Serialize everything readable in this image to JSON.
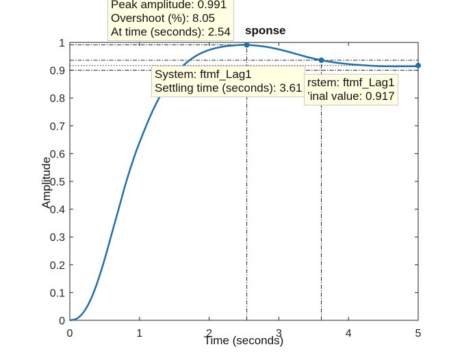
{
  "chart_data": {
    "type": "line",
    "title": "sponse",
    "xlabel": "Time (seconds)",
    "ylabel": "Amplitude",
    "xlim": [
      0,
      5
    ],
    "ylim": [
      0,
      1
    ],
    "grid": false,
    "x_ticks": [
      "0",
      "1",
      "2",
      "3",
      "4",
      "5"
    ],
    "y_ticks": [
      "0",
      "0.1",
      "0.2",
      "0.3",
      "0.4",
      "0.5",
      "0.6",
      "0.7",
      "0.8",
      "0.9",
      "1"
    ],
    "series": [
      {
        "color": "#1f6fae",
        "x": [
          0,
          0.1,
          0.2,
          0.3,
          0.4,
          0.5,
          0.6,
          0.7,
          0.8,
          0.9,
          1.0,
          1.2,
          1.4,
          1.6,
          1.8,
          2.0,
          2.2,
          2.4,
          2.54,
          2.8,
          3.0,
          3.2,
          3.4,
          3.61,
          3.8,
          4.0,
          4.2,
          4.4,
          4.6,
          4.8,
          5.0
        ],
        "y": [
          0,
          0.006,
          0.03,
          0.075,
          0.14,
          0.22,
          0.31,
          0.4,
          0.49,
          0.57,
          0.64,
          0.76,
          0.85,
          0.91,
          0.95,
          0.973,
          0.985,
          0.99,
          0.991,
          0.985,
          0.975,
          0.962,
          0.948,
          0.936,
          0.928,
          0.922,
          0.918,
          0.915,
          0.914,
          0.914,
          0.914
        ]
      }
    ],
    "markers": [
      {
        "name": "peak",
        "x": 2.54,
        "y": 0.991
      },
      {
        "name": "settling",
        "x": 3.61,
        "y": 0.936
      },
      {
        "name": "final",
        "x": 5.0,
        "y": 0.917
      }
    ],
    "reference_lines": [
      {
        "style": "dash-dot",
        "y": 0.991,
        "x_from": 0,
        "x_to": 2.54
      },
      {
        "style": "dash-dot",
        "x": 2.54,
        "y_from": 0,
        "y_to": 0.991
      },
      {
        "style": "dash-dot",
        "x": 3.61,
        "y_from": 0,
        "y_to": 0.936
      },
      {
        "style": "dash-dot",
        "y": 0.936,
        "x_from": 0,
        "x_to": 5
      },
      {
        "style": "dash-dot",
        "y": 0.9,
        "x_from": 0,
        "x_to": 5
      },
      {
        "style": "dotted",
        "y": 0.917,
        "x_from": 0,
        "x_to": 5
      }
    ],
    "datatips": {
      "peak": [
        "Peak amplitude: 0.991",
        "Overshoot (%): 8.05",
        "At time (seconds): 2.54"
      ],
      "settling": [
        "System: ftmf_Lag1",
        "Settling time (seconds): 3.61"
      ],
      "final": [
        "rstem: ftmf_Lag1",
        "’inal value: 0.917"
      ]
    }
  }
}
